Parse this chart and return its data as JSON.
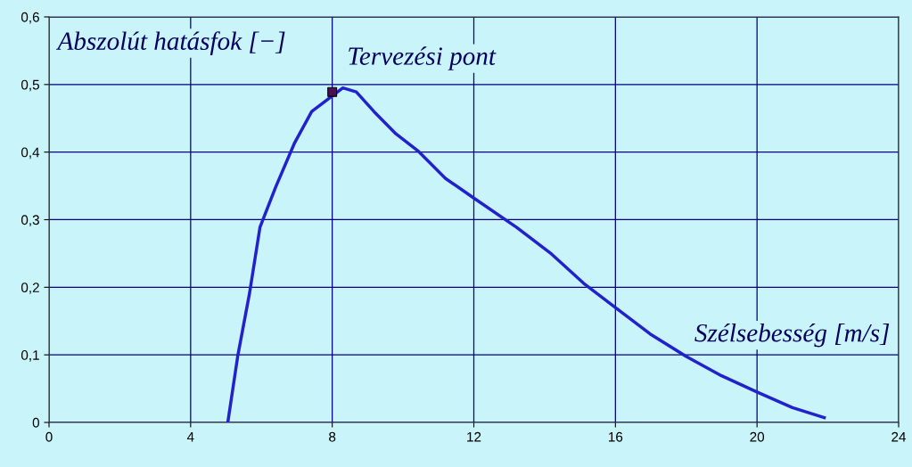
{
  "chart_data": {
    "type": "line",
    "xlabel": "Szélsebesség [m/s]",
    "ylabel": "Abszolút hatásfok [−]",
    "xlim": [
      0,
      24
    ],
    "xticks": [
      0,
      4,
      8,
      12,
      16,
      20,
      24
    ],
    "ylim": [
      0,
      0.6
    ],
    "yticks": [
      {
        "value": 0,
        "label": "0"
      },
      {
        "value": 0.1,
        "label": "0,1"
      },
      {
        "value": 0.2,
        "label": "0,2"
      },
      {
        "value": 0.3,
        "label": "0,3"
      },
      {
        "value": 0.4,
        "label": "0,4"
      },
      {
        "value": 0.5,
        "label": "0,5"
      },
      {
        "value": 0.6,
        "label": "0,6"
      }
    ],
    "grid": true,
    "legend": false,
    "series": [
      {
        "color": "#2222cc",
        "marker": "none",
        "line_style": "solid",
        "x": [
          5.05,
          5.33,
          5.66,
          5.96,
          6.4,
          6.94,
          7.42,
          8.3,
          8.68,
          9.18,
          9.8,
          10.44,
          11.2,
          12,
          13.2,
          14.2,
          15.1,
          16,
          16.98,
          17.99,
          19,
          20,
          21,
          21.9
        ],
        "values": [
          0,
          0.098,
          0.19,
          0.289,
          0.348,
          0.414,
          0.46,
          0.495,
          0.489,
          0.46,
          0.427,
          0.401,
          0.361,
          0.332,
          0.289,
          0.249,
          0.206,
          0.17,
          0.131,
          0.098,
          0.069,
          0.045,
          0.022,
          0.007
        ]
      },
      {
        "type": "scatter",
        "color": "#4b1050",
        "marker": "square",
        "x": [
          8.0
        ],
        "values": [
          0.489
        ]
      }
    ],
    "annotations": [
      {
        "text": "Tervezési pont",
        "x": 8.0,
        "y": 0.489
      }
    ]
  }
}
